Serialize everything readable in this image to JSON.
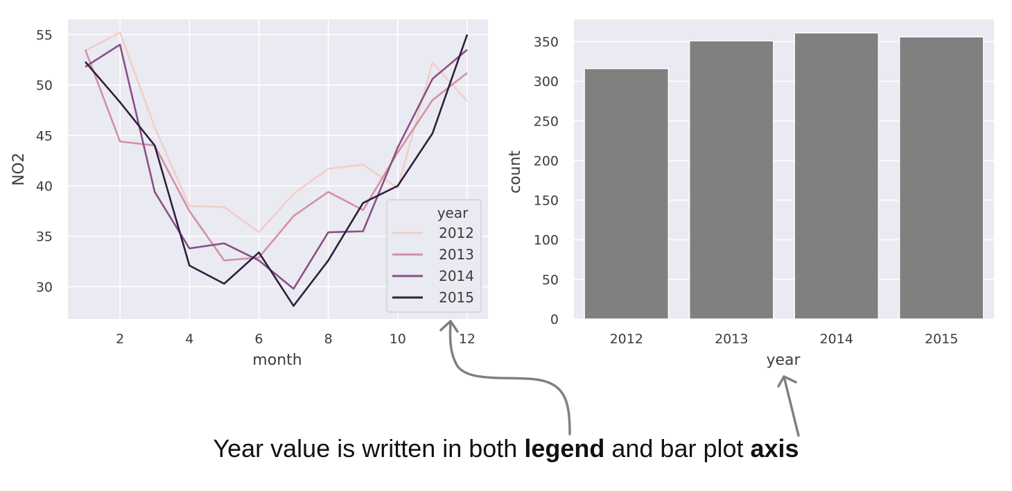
{
  "chart_data": [
    {
      "type": "line",
      "xlabel": "month",
      "ylabel": "NO2",
      "x": [
        1,
        2,
        3,
        4,
        5,
        6,
        7,
        8,
        9,
        10,
        11,
        12
      ],
      "xticks": [
        2,
        4,
        6,
        8,
        10,
        12
      ],
      "yticks": [
        30,
        35,
        40,
        45,
        50,
        55
      ],
      "xlim": [
        0.5,
        12.6
      ],
      "ylim": [
        26.8,
        56.5
      ],
      "grid": true,
      "legend": {
        "title": "year",
        "placement": "lower-right"
      },
      "series": [
        {
          "name": "2012",
          "color": "#f1cfc6",
          "values": [
            53.4,
            55.2,
            45.8,
            38.0,
            37.9,
            35.4,
            39.2,
            41.7,
            42.1,
            39.8,
            52.2,
            48.4
          ]
        },
        {
          "name": "2013",
          "color": "#d390a4",
          "values": [
            53.5,
            44.4,
            44.0,
            37.5,
            32.6,
            32.9,
            37.0,
            39.4,
            37.6,
            43.3,
            48.5,
            51.2
          ]
        },
        {
          "name": "2014",
          "color": "#8a4f85",
          "values": [
            51.8,
            54.0,
            39.4,
            33.8,
            34.3,
            32.6,
            29.8,
            35.4,
            35.5,
            43.8,
            50.6,
            53.5
          ]
        },
        {
          "name": "2015",
          "color": "#2d1e3e",
          "values": [
            52.3,
            48.3,
            44.0,
            32.1,
            30.3,
            33.4,
            28.1,
            32.6,
            38.3,
            40.0,
            45.2,
            55.0
          ]
        }
      ]
    },
    {
      "type": "bar",
      "xlabel": "year",
      "ylabel": "count",
      "categories": [
        "2012",
        "2013",
        "2014",
        "2015"
      ],
      "values": [
        316,
        351,
        361,
        356
      ],
      "yticks": [
        0,
        50,
        100,
        150,
        200,
        250,
        300,
        350
      ],
      "ylim": [
        0,
        378
      ],
      "color": "#808080",
      "grid": true
    }
  ],
  "caption": {
    "pre": "Year value is written in both ",
    "legend_word": "legend",
    "mid": " and bar plot ",
    "axis_word": "axis"
  }
}
